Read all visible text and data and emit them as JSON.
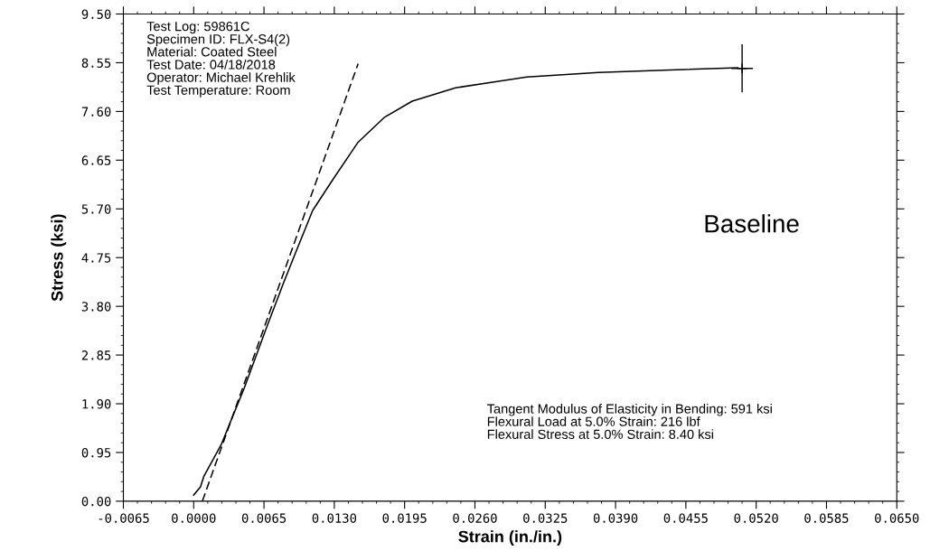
{
  "chart_data": {
    "type": "line",
    "xlabel": "Strain (in./in.)",
    "ylabel": "Stress (ksi)",
    "xlim": [
      -0.0065,
      0.065
    ],
    "ylim": [
      0,
      9.5
    ],
    "xticks": [
      {
        "value": -0.0065,
        "label": "-0.0065"
      },
      {
        "value": 0,
        "label": "0.0000"
      },
      {
        "value": 0.0065,
        "label": "0.0065"
      },
      {
        "value": 0.013,
        "label": "0.0130"
      },
      {
        "value": 0.0195,
        "label": "0.0195"
      },
      {
        "value": 0.026,
        "label": "0.0260"
      },
      {
        "value": 0.0325,
        "label": "0.0325"
      },
      {
        "value": 0.039,
        "label": "0.0390"
      },
      {
        "value": 0.0455,
        "label": "0.0455"
      },
      {
        "value": 0.052,
        "label": "0.0520"
      },
      {
        "value": 0.0585,
        "label": "0.0585"
      },
      {
        "value": 0.065,
        "label": "0.0650"
      }
    ],
    "yticks": [
      {
        "value": 0,
        "label": "0.00"
      },
      {
        "value": 0.95,
        "label": "0.95"
      },
      {
        "value": 1.9,
        "label": "1.90"
      },
      {
        "value": 2.85,
        "label": "2.85"
      },
      {
        "value": 3.8,
        "label": "3.80"
      },
      {
        "value": 4.75,
        "label": "4.75"
      },
      {
        "value": 5.7,
        "label": "5.70"
      },
      {
        "value": 6.65,
        "label": "6.65"
      },
      {
        "value": 7.6,
        "label": "7.60"
      },
      {
        "value": 8.55,
        "label": "8.55"
      },
      {
        "value": 9.5,
        "label": "9.50"
      }
    ],
    "grid": false,
    "series": [
      {
        "color": "#000000",
        "line_style": "solid",
        "x": [
          0,
          0.00063,
          0.00095,
          0.00254,
          0.00468,
          0.00674,
          0.00833,
          0.00943,
          0.011,
          0.0128,
          0.0152,
          0.0176,
          0.0202,
          0.0242,
          0.0279,
          0.0308,
          0.0374,
          0.044,
          0.0503
        ],
        "values": [
          0.12,
          0.28,
          0.49,
          1.1,
          2.21,
          3.39,
          4.27,
          4.85,
          5.67,
          6.25,
          7.0,
          7.48,
          7.8,
          8.06,
          8.18,
          8.27,
          8.36,
          8.41,
          8.45
        ]
      },
      {
        "color": "#000000",
        "line_style": "dashed",
        "x": [
          0.0008,
          0.0152
        ],
        "values": [
          0,
          8.53
        ]
      },
      {
        "type": "scatter",
        "color": "#000000",
        "marker": "cross",
        "x": [
          0.0507
        ],
        "values": [
          8.44
        ],
        "errors": [
          0.47
        ],
        "xerrors": [
          0.001
        ]
      }
    ],
    "annotations": [
      "Test Log: 59861C\nSpecimen ID: FLX-S4(2)\nMaterial: Coated Steel\nTest Date: 04/18/2018\nOperator: Michael Krehlik\nTest Temperature: Room",
      "Tangent Modulus of Elasticity in Bending: 591 ksi\nFlexural Load at 5.0% Strain: 216 lbf\nFlexural Stress at 5.0% Strain: 8.40 ksi",
      "Baseline"
    ]
  }
}
